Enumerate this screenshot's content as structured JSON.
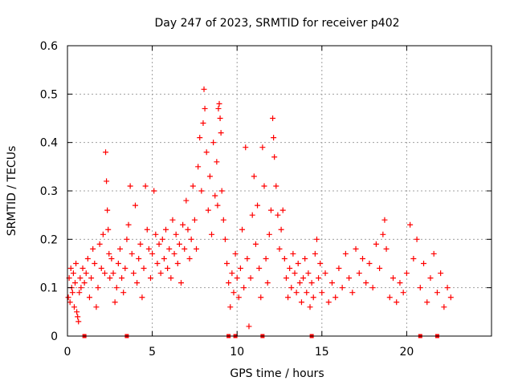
{
  "chart_data": {
    "type": "scatter",
    "title": "Day 247 of 2023, SRMTID for receiver p402",
    "xlabel": "GPS time / hours",
    "ylabel": "SRMTID / TECUs",
    "xlim": [
      0,
      25
    ],
    "ylim": [
      0,
      0.6
    ],
    "x_ticks": [
      "0",
      "5",
      "10",
      "15",
      "20"
    ],
    "y_ticks": [
      "0",
      "0.1",
      "0.2",
      "0.3",
      "0.4",
      "0.5",
      "0.6"
    ],
    "grid": true,
    "marker": "+",
    "color": "#ff0000",
    "series": [
      {
        "name": "SRMTID",
        "points": [
          [
            0.05,
            0.08
          ],
          [
            0.1,
            0.12
          ],
          [
            0.15,
            0.07
          ],
          [
            0.2,
            0.14
          ],
          [
            0.25,
            0.1
          ],
          [
            0.3,
            0.09
          ],
          [
            0.35,
            0.13
          ],
          [
            0.4,
            0.06
          ],
          [
            0.45,
            0.11
          ],
          [
            0.5,
            0.15
          ],
          [
            0.55,
            0.05
          ],
          [
            0.6,
            0.04
          ],
          [
            0.65,
            0.03
          ],
          [
            0.7,
            0.09
          ],
          [
            0.75,
            0.12
          ],
          [
            0.8,
            0.1
          ],
          [
            0.9,
            0.14
          ],
          [
            1.0,
            0.11
          ],
          [
            1.1,
            0.13
          ],
          [
            1.2,
            0.16
          ],
          [
            1.3,
            0.08
          ],
          [
            1.4,
            0.12
          ],
          [
            1.5,
            0.18
          ],
          [
            1.6,
            0.15
          ],
          [
            1.7,
            0.06
          ],
          [
            1.8,
            0.1
          ],
          [
            1.9,
            0.19
          ],
          [
            2.0,
            0.14
          ],
          [
            2.1,
            0.21
          ],
          [
            2.2,
            0.13
          ],
          [
            2.25,
            0.38
          ],
          [
            2.3,
            0.32
          ],
          [
            2.35,
            0.26
          ],
          [
            2.4,
            0.22
          ],
          [
            2.45,
            0.17
          ],
          [
            2.5,
            0.12
          ],
          [
            2.6,
            0.16
          ],
          [
            2.7,
            0.13
          ],
          [
            2.8,
            0.07
          ],
          [
            2.9,
            0.1
          ],
          [
            3.0,
            0.15
          ],
          [
            3.1,
            0.18
          ],
          [
            3.2,
            0.12
          ],
          [
            3.3,
            0.09
          ],
          [
            3.4,
            0.14
          ],
          [
            3.5,
            0.2
          ],
          [
            3.6,
            0.23
          ],
          [
            3.7,
            0.31
          ],
          [
            3.8,
            0.17
          ],
          [
            3.9,
            0.13
          ],
          [
            4.0,
            0.27
          ],
          [
            4.1,
            0.11
          ],
          [
            4.2,
            0.16
          ],
          [
            4.3,
            0.19
          ],
          [
            4.4,
            0.08
          ],
          [
            4.5,
            0.14
          ],
          [
            4.6,
            0.31
          ],
          [
            4.7,
            0.22
          ],
          [
            4.8,
            0.18
          ],
          [
            4.9,
            0.12
          ],
          [
            5.0,
            0.17
          ],
          [
            5.1,
            0.3
          ],
          [
            5.2,
            0.21
          ],
          [
            5.3,
            0.15
          ],
          [
            5.4,
            0.19
          ],
          [
            5.5,
            0.13
          ],
          [
            5.6,
            0.2
          ],
          [
            5.7,
            0.16
          ],
          [
            5.8,
            0.22
          ],
          [
            5.9,
            0.14
          ],
          [
            6.0,
            0.18
          ],
          [
            6.1,
            0.12
          ],
          [
            6.2,
            0.24
          ],
          [
            6.3,
            0.17
          ],
          [
            6.4,
            0.21
          ],
          [
            6.5,
            0.15
          ],
          [
            6.6,
            0.19
          ],
          [
            6.7,
            0.11
          ],
          [
            6.8,
            0.23
          ],
          [
            6.9,
            0.18
          ],
          [
            7.0,
            0.28
          ],
          [
            7.1,
            0.22
          ],
          [
            7.2,
            0.16
          ],
          [
            7.3,
            0.2
          ],
          [
            7.4,
            0.31
          ],
          [
            7.5,
            0.24
          ],
          [
            7.6,
            0.18
          ],
          [
            7.7,
            0.35
          ],
          [
            7.8,
            0.41
          ],
          [
            7.9,
            0.3
          ],
          [
            8.0,
            0.44
          ],
          [
            8.05,
            0.51
          ],
          [
            8.1,
            0.47
          ],
          [
            8.2,
            0.38
          ],
          [
            8.3,
            0.26
          ],
          [
            8.4,
            0.33
          ],
          [
            8.5,
            0.21
          ],
          [
            8.6,
            0.4
          ],
          [
            8.7,
            0.29
          ],
          [
            8.8,
            0.36
          ],
          [
            8.85,
            0.27
          ],
          [
            8.9,
            0.47
          ],
          [
            8.95,
            0.48
          ],
          [
            9.0,
            0.45
          ],
          [
            9.05,
            0.42
          ],
          [
            9.1,
            0.3
          ],
          [
            9.2,
            0.24
          ],
          [
            9.3,
            0.2
          ],
          [
            9.4,
            0.15
          ],
          [
            9.5,
            0.11
          ],
          [
            9.6,
            0.06
          ],
          [
            9.7,
            0.13
          ],
          [
            9.8,
            0.09
          ],
          [
            9.9,
            0.17
          ],
          [
            10.0,
            0.12
          ],
          [
            10.1,
            0.08
          ],
          [
            10.2,
            0.14
          ],
          [
            10.3,
            0.22
          ],
          [
            10.4,
            0.1
          ],
          [
            10.5,
            0.39
          ],
          [
            10.6,
            0.16
          ],
          [
            10.7,
            0.02
          ],
          [
            10.8,
            0.12
          ],
          [
            10.9,
            0.25
          ],
          [
            11.0,
            0.33
          ],
          [
            11.1,
            0.19
          ],
          [
            11.2,
            0.27
          ],
          [
            11.3,
            0.14
          ],
          [
            11.4,
            0.08
          ],
          [
            11.5,
            0.39
          ],
          [
            11.6,
            0.31
          ],
          [
            11.7,
            0.16
          ],
          [
            11.8,
            0.11
          ],
          [
            11.9,
            0.21
          ],
          [
            12.0,
            0.26
          ],
          [
            12.1,
            0.45
          ],
          [
            12.15,
            0.41
          ],
          [
            12.2,
            0.37
          ],
          [
            12.3,
            0.31
          ],
          [
            12.4,
            0.25
          ],
          [
            12.5,
            0.18
          ],
          [
            12.6,
            0.22
          ],
          [
            12.7,
            0.26
          ],
          [
            12.8,
            0.16
          ],
          [
            12.9,
            0.12
          ],
          [
            13.0,
            0.08
          ],
          [
            13.1,
            0.14
          ],
          [
            13.2,
            0.1
          ],
          [
            13.3,
            0.17
          ],
          [
            13.4,
            0.13
          ],
          [
            13.5,
            0.09
          ],
          [
            13.6,
            0.15
          ],
          [
            13.7,
            0.11
          ],
          [
            13.8,
            0.07
          ],
          [
            13.9,
            0.12
          ],
          [
            14.0,
            0.16
          ],
          [
            14.1,
            0.09
          ],
          [
            14.2,
            0.13
          ],
          [
            14.3,
            0.06
          ],
          [
            14.4,
            0.11
          ],
          [
            14.5,
            0.08
          ],
          [
            14.6,
            0.17
          ],
          [
            14.7,
            0.2
          ],
          [
            14.8,
            0.12
          ],
          [
            14.9,
            0.15
          ],
          [
            15.0,
            0.09
          ],
          [
            15.2,
            0.13
          ],
          [
            15.4,
            0.07
          ],
          [
            15.6,
            0.11
          ],
          [
            15.8,
            0.08
          ],
          [
            16.0,
            0.14
          ],
          [
            16.2,
            0.1
          ],
          [
            16.4,
            0.17
          ],
          [
            16.6,
            0.12
          ],
          [
            16.8,
            0.09
          ],
          [
            17.0,
            0.18
          ],
          [
            17.2,
            0.13
          ],
          [
            17.4,
            0.16
          ],
          [
            17.6,
            0.11
          ],
          [
            17.8,
            0.15
          ],
          [
            18.0,
            0.1
          ],
          [
            18.2,
            0.19
          ],
          [
            18.4,
            0.14
          ],
          [
            18.6,
            0.21
          ],
          [
            18.7,
            0.24
          ],
          [
            18.8,
            0.18
          ],
          [
            19.0,
            0.08
          ],
          [
            19.2,
            0.12
          ],
          [
            19.4,
            0.07
          ],
          [
            19.6,
            0.11
          ],
          [
            19.8,
            0.09
          ],
          [
            20.0,
            0.13
          ],
          [
            20.2,
            0.23
          ],
          [
            20.4,
            0.16
          ],
          [
            20.6,
            0.2
          ],
          [
            20.8,
            0.1
          ],
          [
            21.0,
            0.15
          ],
          [
            21.2,
            0.07
          ],
          [
            21.4,
            0.12
          ],
          [
            21.6,
            0.17
          ],
          [
            21.8,
            0.09
          ],
          [
            22.0,
            0.13
          ],
          [
            22.2,
            0.06
          ],
          [
            22.4,
            0.1
          ],
          [
            22.6,
            0.08
          ]
        ]
      }
    ],
    "baseline_markers_x": [
      1.0,
      3.5,
      9.5,
      9.9,
      11.5,
      14.4,
      20.8,
      21.8
    ]
  }
}
